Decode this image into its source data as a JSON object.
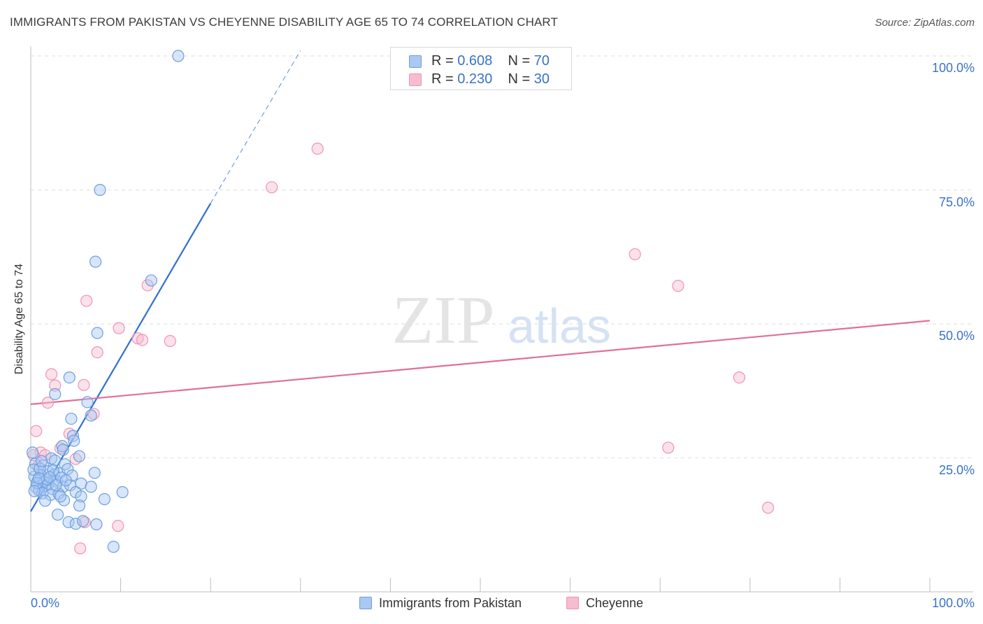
{
  "title": "IMMIGRANTS FROM PAKISTAN VS CHEYENNE DISABILITY AGE 65 TO 74 CORRELATION CHART",
  "source": "Source: ZipAtlas.com",
  "watermark": {
    "zip": "ZIP",
    "atlas": "atlas"
  },
  "legend_top": {
    "rows": [
      {
        "r_label": "R = ",
        "r_value": "0.608",
        "n_label": "N = ",
        "n_value": "70"
      },
      {
        "r_label": "R = ",
        "r_value": "0.230",
        "n_label": "N = ",
        "n_value": "30"
      }
    ]
  },
  "colors": {
    "pakistan_fill": "#a9c8f2",
    "pakistan_stroke": "#6d9fe0",
    "pakistan_line": "#2f6fd0",
    "cheyenne_fill": "#f7bcd0",
    "cheyenne_stroke": "#ee94b2",
    "cheyenne_line": "#e07098",
    "tick_text": "#3a72c8",
    "grid": "#dedede"
  },
  "chart_data": {
    "type": "scatter",
    "title": "IMMIGRANTS FROM PAKISTAN VS CHEYENNE DISABILITY AGE 65 TO 74 CORRELATION CHART",
    "xlabel": "",
    "ylabel": "Disability Age 65 to 74",
    "xlim": [
      0,
      100
    ],
    "ylim": [
      0,
      100
    ],
    "x_tick_labels": [
      "0.0%",
      "100.0%"
    ],
    "y_ticks": [
      25,
      50,
      75,
      100
    ],
    "y_tick_labels": [
      "25.0%",
      "50.0%",
      "75.0%",
      "100.0%"
    ],
    "grid": true,
    "legend_position": "bottom",
    "series": [
      {
        "name": "Immigrants from Pakistan",
        "color": "#6d9fe0",
        "R": 0.608,
        "N": 70,
        "trend": {
          "x0": 0.0,
          "y0": 15.0,
          "x1": 20.0,
          "y1": 72.5,
          "dashed_to_x": 30.0,
          "dashed_to_y": 101.0
        },
        "points": [
          [
            16.4,
            100.0
          ],
          [
            7.7,
            75.0
          ],
          [
            7.2,
            61.6
          ],
          [
            13.4,
            58.1
          ],
          [
            7.4,
            48.3
          ],
          [
            4.3,
            40.0
          ],
          [
            2.7,
            36.9
          ],
          [
            6.3,
            35.4
          ],
          [
            4.5,
            32.3
          ],
          [
            6.7,
            32.9
          ],
          [
            4.7,
            29.1
          ],
          [
            3.5,
            27.2
          ],
          [
            4.8,
            28.2
          ],
          [
            5.4,
            25.3
          ],
          [
            3.6,
            26.5
          ],
          [
            0.2,
            26.0
          ],
          [
            0.5,
            23.9
          ],
          [
            1.4,
            23.6
          ],
          [
            2.3,
            24.9
          ],
          [
            2.7,
            24.5
          ],
          [
            3.8,
            23.8
          ],
          [
            1.9,
            22.5
          ],
          [
            2.6,
            21.9
          ],
          [
            3.2,
            22.1
          ],
          [
            4.1,
            22.9
          ],
          [
            1.1,
            21.8
          ],
          [
            0.4,
            21.5
          ],
          [
            0.8,
            20.8
          ],
          [
            1.5,
            20.5
          ],
          [
            2.0,
            20.2
          ],
          [
            2.9,
            20.6
          ],
          [
            3.4,
            21.3
          ],
          [
            1.7,
            19.8
          ],
          [
            2.4,
            19.2
          ],
          [
            3.6,
            19.6
          ],
          [
            0.6,
            19.5
          ],
          [
            0.9,
            18.9
          ],
          [
            1.3,
            18.4
          ],
          [
            0.3,
            22.8
          ],
          [
            2.2,
            18.1
          ],
          [
            4.4,
            19.9
          ],
          [
            5.6,
            20.2
          ],
          [
            6.7,
            19.6
          ],
          [
            7.1,
            22.2
          ],
          [
            3.1,
            18.3
          ],
          [
            5.0,
            18.6
          ],
          [
            5.6,
            17.8
          ],
          [
            3.7,
            17.1
          ],
          [
            1.6,
            17.0
          ],
          [
            8.2,
            17.3
          ],
          [
            10.2,
            18.6
          ],
          [
            5.4,
            16.1
          ],
          [
            3.0,
            14.4
          ],
          [
            4.2,
            13.0
          ],
          [
            5.0,
            12.7
          ],
          [
            5.8,
            13.2
          ],
          [
            7.3,
            12.6
          ],
          [
            9.2,
            8.4
          ],
          [
            0.7,
            20.3
          ],
          [
            1.0,
            23.0
          ],
          [
            1.8,
            21.0
          ],
          [
            2.5,
            22.7
          ],
          [
            2.8,
            19.9
          ],
          [
            3.3,
            17.8
          ],
          [
            4.6,
            21.7
          ],
          [
            0.4,
            18.8
          ],
          [
            1.2,
            24.4
          ],
          [
            2.1,
            21.4
          ],
          [
            3.9,
            20.8
          ],
          [
            0.9,
            21.2
          ]
        ]
      },
      {
        "name": "Cheyenne",
        "color": "#ee94b2",
        "R": 0.23,
        "N": 30,
        "trend": {
          "x0": 0.0,
          "y0": 35.0,
          "x1": 100.0,
          "y1": 50.6
        },
        "points": [
          [
            31.9,
            82.7
          ],
          [
            26.8,
            75.5
          ],
          [
            67.2,
            63.0
          ],
          [
            72.0,
            57.1
          ],
          [
            13.0,
            57.2
          ],
          [
            6.2,
            54.3
          ],
          [
            9.8,
            49.2
          ],
          [
            11.9,
            47.3
          ],
          [
            12.4,
            47.0
          ],
          [
            15.5,
            46.8
          ],
          [
            7.4,
            44.7
          ],
          [
            78.8,
            40.0
          ],
          [
            2.3,
            40.6
          ],
          [
            2.7,
            38.5
          ],
          [
            5.9,
            38.6
          ],
          [
            1.9,
            35.3
          ],
          [
            7.0,
            33.2
          ],
          [
            0.6,
            30.0
          ],
          [
            4.3,
            29.5
          ],
          [
            3.3,
            26.8
          ],
          [
            70.9,
            26.9
          ],
          [
            1.1,
            26.0
          ],
          [
            1.6,
            25.5
          ],
          [
            5.0,
            24.8
          ],
          [
            0.8,
            23.4
          ],
          [
            6.0,
            13.0
          ],
          [
            9.7,
            12.3
          ],
          [
            82.0,
            15.7
          ],
          [
            5.5,
            8.1
          ],
          [
            0.3,
            25.5
          ]
        ]
      }
    ]
  },
  "legend_bottom": [
    "Immigrants from Pakistan",
    "Cheyenne"
  ]
}
